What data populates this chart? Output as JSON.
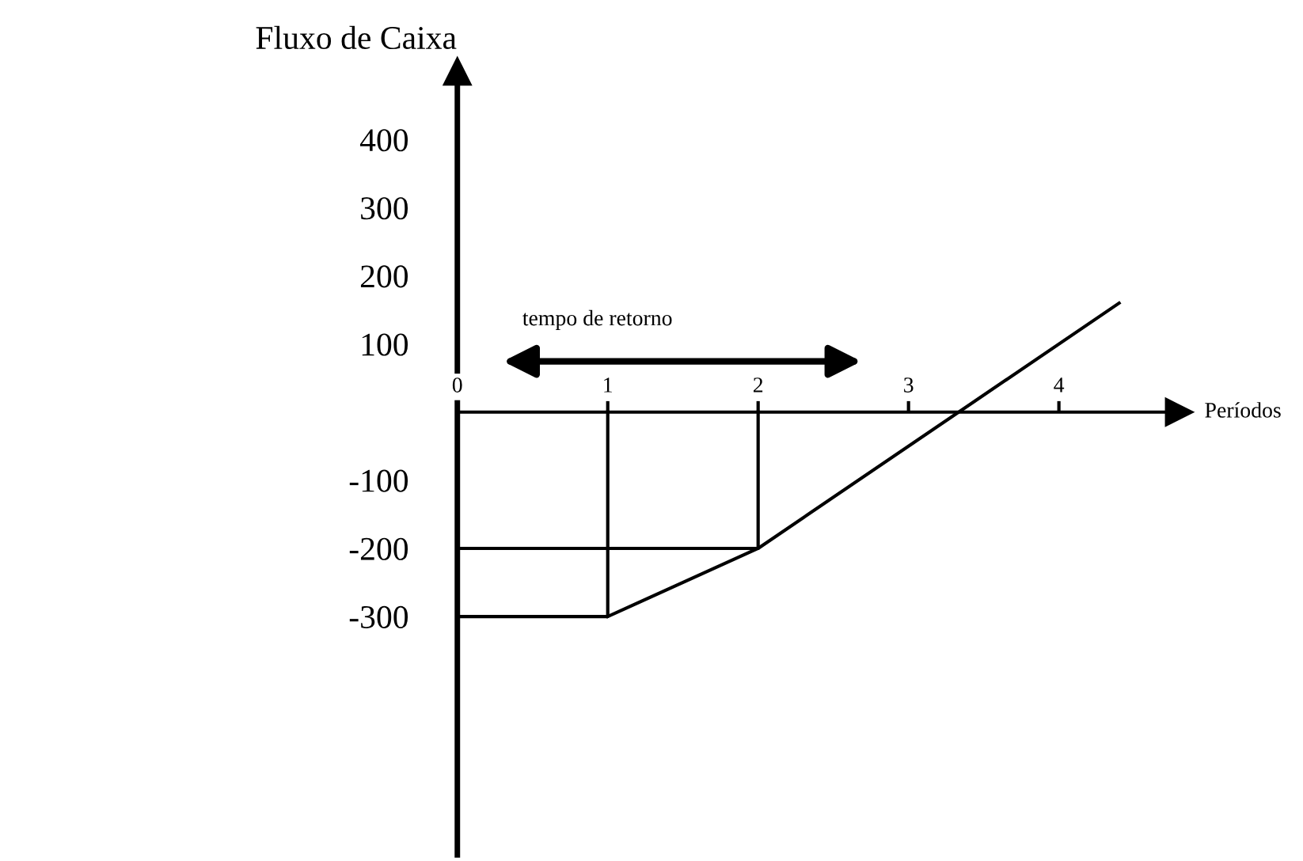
{
  "chart_data": {
    "type": "line",
    "xlabel": "Períodos",
    "ylabel": "Fluxo de Caixa",
    "xlim": [
      0,
      4.8
    ],
    "ylim": [
      -650,
      500
    ],
    "xticks": [
      0,
      1,
      2,
      3,
      4
    ],
    "yticks": [
      -300,
      -200,
      -100,
      100,
      200,
      300,
      400
    ],
    "series": [
      {
        "color": "#000000",
        "x": [
          1,
          2,
          4.4
        ],
        "values": [
          -300,
          -200,
          160
        ]
      },
      {
        "color": "#000000",
        "x": [
          0,
          1,
          1
        ],
        "values": [
          -300,
          -300,
          0
        ]
      },
      {
        "color": "#000000",
        "x": [
          0,
          2,
          2
        ],
        "values": [
          -200,
          -200,
          0
        ]
      }
    ],
    "annotations": [
      "tempo de retorno"
    ],
    "grid": false,
    "legend": false,
    "marker": "none",
    "line_style": "solid"
  }
}
